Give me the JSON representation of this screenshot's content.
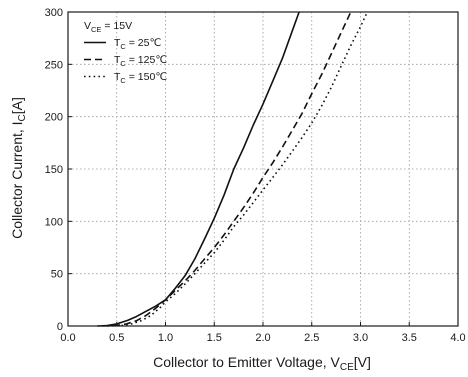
{
  "chart_data": {
    "type": "line",
    "title": "",
    "xlabel": {
      "main": "Collector to Emitter Voltage, V",
      "sub": "CE",
      "unit": "[V]"
    },
    "ylabel": {
      "main": "Collector Current, I",
      "sub": "C",
      "unit": "[A]"
    },
    "xlim": [
      0.0,
      4.0
    ],
    "ylim": [
      0,
      300
    ],
    "xticks": [
      "0.0",
      "0.5",
      "1.0",
      "1.5",
      "2.0",
      "2.5",
      "3.0",
      "3.5",
      "4.0"
    ],
    "yticks": [
      "0",
      "50",
      "100",
      "150",
      "200",
      "250",
      "300"
    ],
    "grid": true,
    "legend": {
      "position": "top-left",
      "header": {
        "main": "V",
        "sub": "CE",
        "suffix": " = 15V"
      },
      "entries": [
        {
          "main": "T",
          "sub": "C",
          "suffix": " = 25℃",
          "style": "solid"
        },
        {
          "main": "T",
          "sub": "C",
          "suffix": " = 125℃",
          "style": "dashed"
        },
        {
          "main": "T",
          "sub": "C",
          "suffix": " = 150℃",
          "style": "dotted"
        }
      ]
    },
    "series": [
      {
        "name": "T_C = 25℃",
        "style": "solid",
        "points": [
          [
            0.3,
            0
          ],
          [
            0.4,
            0.5
          ],
          [
            0.5,
            2
          ],
          [
            0.6,
            5
          ],
          [
            0.7,
            9
          ],
          [
            0.8,
            14
          ],
          [
            0.9,
            19
          ],
          [
            1.0,
            25
          ],
          [
            1.1,
            36
          ],
          [
            1.2,
            48
          ],
          [
            1.3,
            64
          ],
          [
            1.4,
            83
          ],
          [
            1.5,
            103
          ],
          [
            1.6,
            125
          ],
          [
            1.7,
            150
          ],
          [
            1.8,
            170
          ],
          [
            1.9,
            192
          ],
          [
            2.0,
            212
          ],
          [
            2.1,
            234
          ],
          [
            2.2,
            256
          ],
          [
            2.3,
            282
          ],
          [
            2.37,
            300
          ]
        ]
      },
      {
        "name": "T_C = 125℃",
        "style": "dashed",
        "points": [
          [
            0.35,
            0
          ],
          [
            0.5,
            0.5
          ],
          [
            0.6,
            2
          ],
          [
            0.7,
            5
          ],
          [
            0.8,
            10
          ],
          [
            0.9,
            17
          ],
          [
            1.0,
            25
          ],
          [
            1.1,
            34
          ],
          [
            1.2,
            43
          ],
          [
            1.3,
            53
          ],
          [
            1.4,
            64
          ],
          [
            1.5,
            75
          ],
          [
            1.6,
            87
          ],
          [
            1.7,
            100
          ],
          [
            1.8,
            113
          ],
          [
            1.9,
            127
          ],
          [
            2.0,
            142
          ],
          [
            2.1,
            156
          ],
          [
            2.2,
            171
          ],
          [
            2.3,
            187
          ],
          [
            2.4,
            203
          ],
          [
            2.5,
            222
          ],
          [
            2.6,
            240
          ],
          [
            2.7,
            260
          ],
          [
            2.8,
            280
          ],
          [
            2.9,
            300
          ]
        ]
      },
      {
        "name": "T_C = 150℃",
        "style": "dotted",
        "points": [
          [
            0.4,
            0
          ],
          [
            0.55,
            0.5
          ],
          [
            0.65,
            2
          ],
          [
            0.75,
            5
          ],
          [
            0.85,
            10
          ],
          [
            0.95,
            18
          ],
          [
            1.0,
            23
          ],
          [
            1.1,
            31
          ],
          [
            1.2,
            40
          ],
          [
            1.3,
            50
          ],
          [
            1.4,
            60
          ],
          [
            1.5,
            70
          ],
          [
            1.6,
            82
          ],
          [
            1.7,
            95
          ],
          [
            1.8,
            106
          ],
          [
            1.9,
            118
          ],
          [
            2.0,
            130
          ],
          [
            2.1,
            142
          ],
          [
            2.2,
            154
          ],
          [
            2.3,
            167
          ],
          [
            2.4,
            180
          ],
          [
            2.5,
            194
          ],
          [
            2.6,
            210
          ],
          [
            2.7,
            228
          ],
          [
            2.8,
            248
          ],
          [
            2.9,
            268
          ],
          [
            3.0,
            286
          ],
          [
            3.07,
            300
          ]
        ]
      }
    ]
  }
}
